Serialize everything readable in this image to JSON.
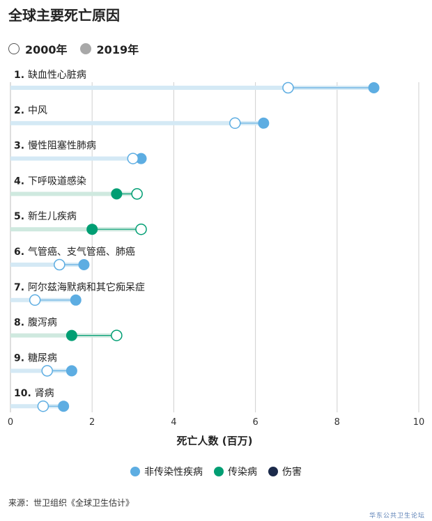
{
  "title": "全球主要死亡原因",
  "year_legend": [
    {
      "label": "2000年",
      "style": "open"
    },
    {
      "label": "2019年",
      "style": "filled"
    }
  ],
  "category_legend": [
    {
      "label": "非传染性疾病",
      "color": "#5dade2"
    },
    {
      "label": "传染病",
      "color": "#009e73"
    },
    {
      "label": "伤害",
      "color": "#1b2a4a"
    }
  ],
  "source": "来源：世卫组织《全球卫生估计》",
  "watermark": "华东公共卫生论坛",
  "chart_data": {
    "type": "dumbbell",
    "xlabel": "死亡人数 (百万)",
    "xlim": [
      0,
      10
    ],
    "xticks": [
      0,
      2,
      4,
      6,
      8,
      10
    ],
    "grid": true,
    "legend_position": "bottom",
    "colors": {
      "noncommunicable": "#5dade2",
      "communicable": "#009e73",
      "injury": "#1b2a4a"
    },
    "rows": [
      {
        "label": "1. 缺血性心脏病",
        "group": "noncommunicable",
        "v2000": 6.8,
        "v2019": 8.9
      },
      {
        "label": "2. 中风",
        "group": "noncommunicable",
        "v2000": 5.5,
        "v2019": 6.2
      },
      {
        "label": "3. 慢性阻塞性肺病",
        "group": "noncommunicable",
        "v2000": 3.0,
        "v2019": 3.2
      },
      {
        "label": "4. 下呼吸道感染",
        "group": "communicable",
        "v2000": 3.1,
        "v2019": 2.6
      },
      {
        "label": "5. 新生儿疾病",
        "group": "communicable",
        "v2000": 3.2,
        "v2019": 2.0
      },
      {
        "label": "6. 气管癌、支气管癌、肺癌",
        "group": "noncommunicable",
        "v2000": 1.2,
        "v2019": 1.8
      },
      {
        "label": "7. 阿尔兹海默病和其它痴呆症",
        "group": "noncommunicable",
        "v2000": 0.6,
        "v2019": 1.6
      },
      {
        "label": "8. 腹泻病",
        "group": "communicable",
        "v2000": 2.6,
        "v2019": 1.5
      },
      {
        "label": "9. 糖尿病",
        "group": "noncommunicable",
        "v2000": 0.9,
        "v2019": 1.5
      },
      {
        "label": "10. 肾病",
        "group": "noncommunicable",
        "v2000": 0.8,
        "v2019": 1.3
      }
    ]
  }
}
